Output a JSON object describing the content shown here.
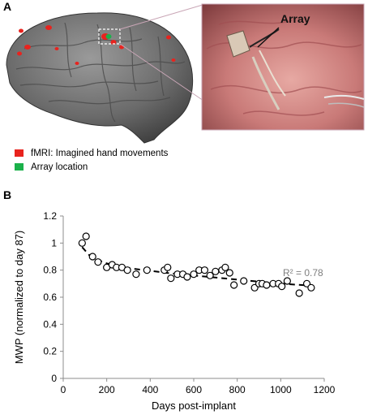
{
  "panel_a": {
    "letter": "A",
    "array_label": "Array",
    "legend": [
      {
        "label": "fMRI: Imagined hand movements",
        "color": "#e8231e"
      },
      {
        "label": "Array location",
        "color": "#1bb14a"
      }
    ]
  },
  "panel_b": {
    "letter": "B"
  },
  "chart_data": {
    "type": "scatter",
    "xlabel": "Days post-implant",
    "ylabel": "MWP (normalized to day 87)",
    "xlim": [
      0,
      1200
    ],
    "ylim": [
      0,
      1.2
    ],
    "xticks": [
      0,
      200,
      400,
      600,
      800,
      1000,
      1200
    ],
    "yticks": [
      0,
      0.2,
      0.4,
      0.6,
      0.8,
      1,
      1.2
    ],
    "annotation": "R² = 0.78",
    "grid": false,
    "trendline": "dashed",
    "points": [
      [
        87,
        1.0
      ],
      [
        105,
        1.05
      ],
      [
        135,
        0.9
      ],
      [
        160,
        0.86
      ],
      [
        200,
        0.82
      ],
      [
        225,
        0.84
      ],
      [
        245,
        0.82
      ],
      [
        270,
        0.82
      ],
      [
        295,
        0.8
      ],
      [
        335,
        0.77
      ],
      [
        385,
        0.8
      ],
      [
        465,
        0.8
      ],
      [
        480,
        0.82
      ],
      [
        495,
        0.74
      ],
      [
        525,
        0.77
      ],
      [
        550,
        0.77
      ],
      [
        570,
        0.75
      ],
      [
        600,
        0.77
      ],
      [
        625,
        0.8
      ],
      [
        650,
        0.8
      ],
      [
        675,
        0.76
      ],
      [
        700,
        0.79
      ],
      [
        730,
        0.8
      ],
      [
        745,
        0.82
      ],
      [
        765,
        0.78
      ],
      [
        785,
        0.69
      ],
      [
        830,
        0.72
      ],
      [
        880,
        0.67
      ],
      [
        900,
        0.7
      ],
      [
        915,
        0.7
      ],
      [
        935,
        0.69
      ],
      [
        965,
        0.7
      ],
      [
        990,
        0.7
      ],
      [
        1005,
        0.68
      ],
      [
        1030,
        0.72
      ],
      [
        1085,
        0.63
      ],
      [
        1120,
        0.7
      ],
      [
        1140,
        0.67
      ]
    ],
    "trend_points": [
      [
        87,
        0.97
      ],
      [
        120,
        0.91
      ],
      [
        150,
        0.88
      ],
      [
        200,
        0.85
      ],
      [
        250,
        0.83
      ],
      [
        300,
        0.815
      ],
      [
        400,
        0.795
      ],
      [
        500,
        0.775
      ],
      [
        600,
        0.76
      ],
      [
        700,
        0.745
      ],
      [
        800,
        0.73
      ],
      [
        900,
        0.715
      ],
      [
        1000,
        0.7
      ],
      [
        1140,
        0.685
      ]
    ]
  }
}
